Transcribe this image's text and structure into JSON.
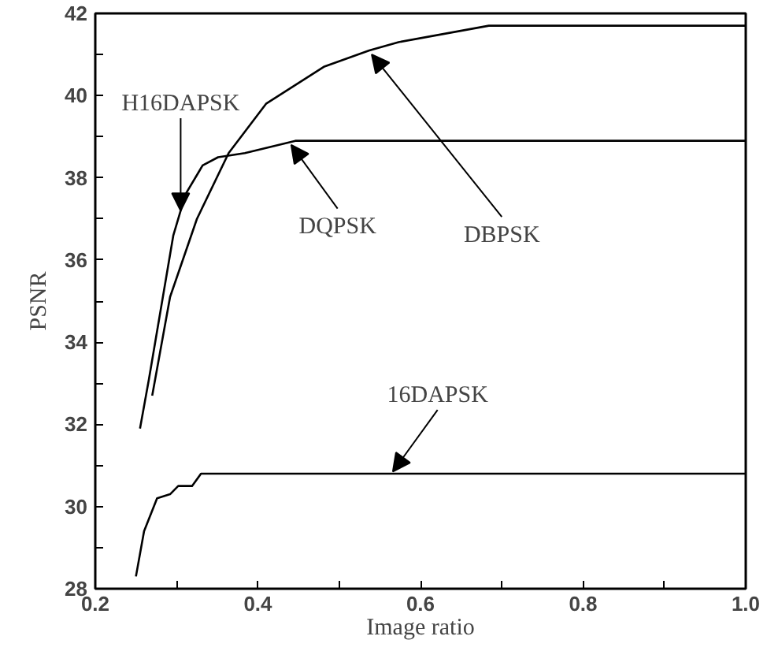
{
  "chart_data": {
    "type": "line",
    "xlabel": "Image ratio",
    "ylabel": "PSNR",
    "xlim": [
      0.2,
      1.0
    ],
    "ylim": [
      28,
      42
    ],
    "xticks": [
      {
        "value": 0.2,
        "label": "0.2"
      },
      {
        "value": 0.3,
        "label": null
      },
      {
        "value": 0.4,
        "label": "0.4"
      },
      {
        "value": 0.5,
        "label": null
      },
      {
        "value": 0.6,
        "label": "0.6"
      },
      {
        "value": 0.7,
        "label": null
      },
      {
        "value": 0.8,
        "label": "0.8"
      },
      {
        "value": 0.9,
        "label": null
      },
      {
        "value": 1,
        "label": "1.0"
      }
    ],
    "yticks": [
      28,
      {
        "value": 29,
        "label": null
      },
      30,
      {
        "value": 31,
        "label": null
      },
      32,
      {
        "value": 33,
        "label": null
      },
      34,
      {
        "value": 35,
        "label": null
      },
      36,
      {
        "value": 37,
        "label": null
      },
      38,
      {
        "value": 39,
        "label": null
      },
      40,
      {
        "value": 41,
        "label": null
      },
      42
    ],
    "grid": false,
    "marker": "none",
    "line_style": "solid",
    "series": [
      {
        "color": "#000000",
        "x": [
          0.255,
          0.266,
          0.296,
          0.311,
          0.332,
          0.351,
          0.384,
          0.446,
          0.481,
          1.0
        ],
        "values": [
          31.9,
          33.1,
          36.6,
          37.6,
          38.3,
          38.5,
          38.6,
          38.9,
          38.9,
          38.9
        ]
      },
      {
        "color": "#000000",
        "x": [
          0.27,
          0.292,
          0.325,
          0.364,
          0.41,
          0.481,
          0.537,
          0.573,
          0.684,
          1.0
        ],
        "values": [
          32.7,
          35.1,
          37.0,
          38.6,
          39.8,
          40.7,
          41.1,
          41.3,
          41.7,
          41.7
        ]
      },
      {
        "color": "#000000",
        "x": [
          0.25,
          0.26,
          0.276,
          0.292,
          0.302,
          0.319,
          0.33,
          1.0
        ],
        "values": [
          28.3,
          29.4,
          30.2,
          30.3,
          30.5,
          30.5,
          30.8,
          30.8
        ]
      }
    ],
    "annotations": [
      {
        "text": "H16DAPSK",
        "x": 0.305,
        "y": 37.2
      },
      {
        "text": "DQPSK",
        "x": 0.441,
        "y": 38.8
      },
      {
        "text": "DBPSK",
        "x": 0.54,
        "y": 41.0
      },
      {
        "text": "16DAPSK",
        "x": 0.566,
        "y": 30.85
      }
    ]
  }
}
